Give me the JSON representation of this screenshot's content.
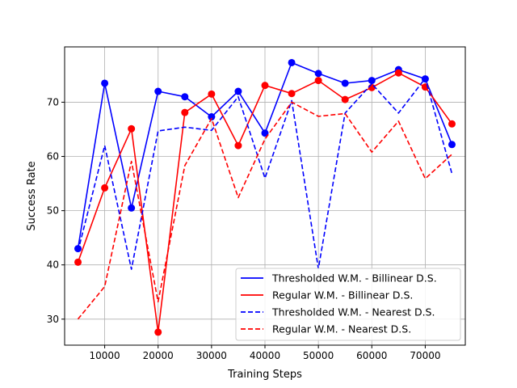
{
  "chart_data": {
    "type": "line",
    "title": "",
    "xlabel": "Training Steps",
    "ylabel": "Success Rate",
    "xlim": [
      2500,
      77500
    ],
    "ylim": [
      25.2,
      80.2
    ],
    "xticks": [
      10000,
      20000,
      30000,
      40000,
      50000,
      60000,
      70000
    ],
    "yticks": [
      30,
      40,
      50,
      60,
      70
    ],
    "grid": true,
    "legend_position": "lower-right",
    "x": [
      5000,
      10000,
      15000,
      20000,
      25000,
      30000,
      35000,
      40000,
      45000,
      50000,
      55000,
      60000,
      65000,
      70000,
      75000
    ],
    "series": [
      {
        "name": "Thresholded W.M. - Billinear D.S.",
        "color": "#0000ff",
        "style": "solid",
        "markers": true,
        "values": [
          43.0,
          73.5,
          50.5,
          72.0,
          71.0,
          67.3,
          72.0,
          64.3,
          77.3,
          75.3,
          73.5,
          74.0,
          76.0,
          74.3,
          62.2
        ]
      },
      {
        "name": "Regular W.M. - Billinear D.S.",
        "color": "#ff0000",
        "style": "solid",
        "markers": true,
        "values": [
          40.5,
          54.2,
          65.1,
          27.6,
          68.1,
          71.5,
          62.0,
          73.1,
          71.6,
          74.0,
          70.5,
          72.7,
          75.4,
          72.8,
          66.0
        ]
      },
      {
        "name": "Thresholded W.M. - Nearest D.S.",
        "color": "#0000ff",
        "style": "dashed",
        "markers": false,
        "values": [
          42.5,
          62.0,
          39.2,
          64.7,
          65.4,
          64.8,
          71.0,
          56.0,
          70.3,
          39.3,
          68.0,
          73.4,
          68.0,
          74.4,
          56.8
        ]
      },
      {
        "name": "Regular W.M. - Nearest D.S.",
        "color": "#ff0000",
        "style": "dashed",
        "markers": false,
        "values": [
          30.0,
          36.0,
          59.1,
          33.2,
          58.3,
          67.0,
          52.4,
          63.2,
          70.0,
          67.4,
          67.9,
          60.8,
          66.5,
          55.9,
          60.4
        ]
      }
    ]
  }
}
